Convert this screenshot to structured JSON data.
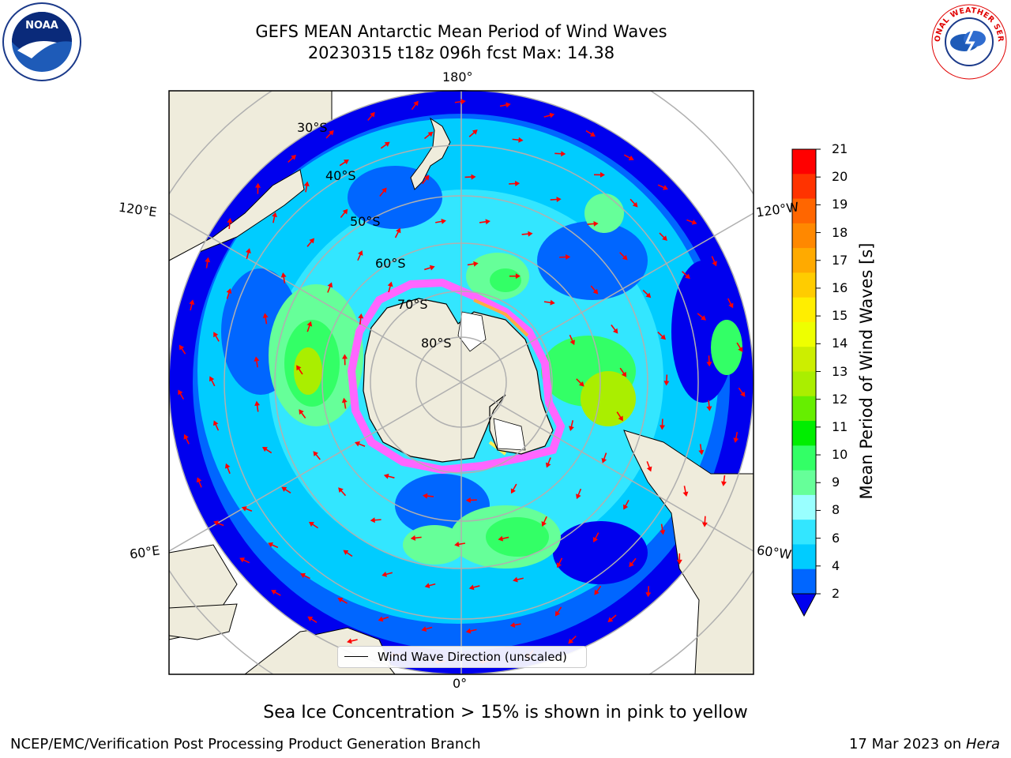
{
  "title": {
    "line1": "GEFS MEAN Antarctic Mean Period of Wind Waves",
    "line2": "20230315 t18z 096h fcst   Max: 14.38"
  },
  "logos": {
    "left": {
      "text": "NOAA",
      "icon": "noaa-logo-icon"
    },
    "right": {
      "text": "NATIONAL WEATHER SERVICE",
      "icon": "nws-logo-icon"
    }
  },
  "map": {
    "longitude_labels": {
      "top": "180°",
      "bottom": "0°",
      "upper_left": "120°E",
      "upper_right": "120°W",
      "lower_left": "60°E",
      "lower_right": "60°W"
    },
    "latitude_labels": [
      "30°S",
      "40°S",
      "50°S",
      "60°S",
      "70°S",
      "80°S"
    ],
    "legend": "Wind Wave Direction (unscaled)",
    "arrow_color": "#ff0000",
    "land_color": "#efecdc",
    "sea_ice_colors": [
      "#ff66ff",
      "#ffaa44",
      "#ffee55"
    ]
  },
  "colorbar": {
    "label": "Mean Period of Wind Waves [s]",
    "ticks": [
      "2",
      "4",
      "6",
      "8",
      "9",
      "10",
      "11",
      "12",
      "13",
      "14",
      "15",
      "16",
      "17",
      "18",
      "19",
      "20",
      "21"
    ],
    "colors": [
      "#0066ff",
      "#00ccff",
      "#33e6ff",
      "#99ffff",
      "#66ff99",
      "#33ff66",
      "#00ee00",
      "#66ee00",
      "#aaee00",
      "#ccee00",
      "#eeff00",
      "#ffee00",
      "#ffcc00",
      "#ffaa00",
      "#ff8800",
      "#ff6600",
      "#ff3300",
      "#ff0000"
    ],
    "underflow_color": "#0000ee"
  },
  "note": "Sea Ice Concentration > 15% is shown in pink to yellow",
  "footer": {
    "left": "NCEP/EMC/Verification Post Processing Product Generation Branch",
    "date": "17 Mar 2023 on",
    "machine": "Hera"
  }
}
